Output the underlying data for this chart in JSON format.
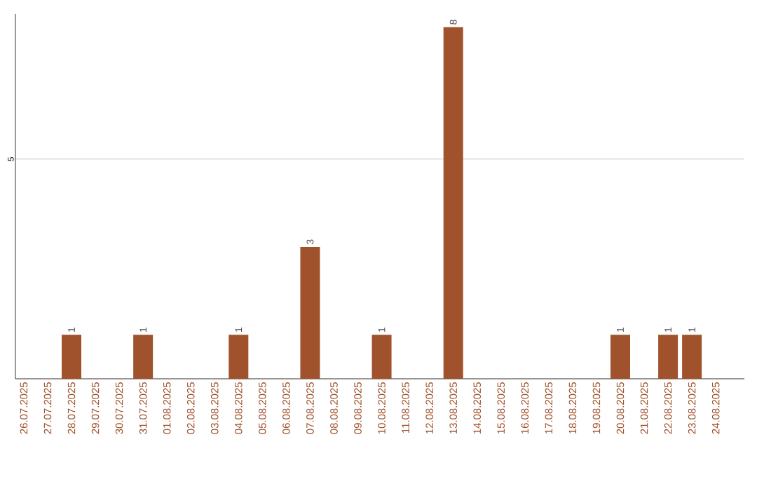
{
  "chart_data": {
    "type": "bar",
    "categories": [
      "26.07.2025",
      "27.07.2025",
      "28.07.2025",
      "29.07.2025",
      "30.07.2025",
      "31.07.2025",
      "01.08.2025",
      "02.08.2025",
      "03.08.2025",
      "04.08.2025",
      "05.08.2025",
      "06.08.2025",
      "07.08.2025",
      "08.08.2025",
      "09.08.2025",
      "10.08.2025",
      "11.08.2025",
      "12.08.2025",
      "13.08.2025",
      "14.08.2025",
      "15.08.2025",
      "16.08.2025",
      "17.08.2025",
      "18.08.2025",
      "19.08.2025",
      "20.08.2025",
      "21.08.2025",
      "22.08.2025",
      "23.08.2025",
      "24.08.2025"
    ],
    "values": [
      0,
      0,
      1,
      0,
      0,
      1,
      0,
      0,
      0,
      1,
      0,
      0,
      3,
      0,
      0,
      1,
      0,
      0,
      8,
      0,
      0,
      0,
      0,
      0,
      0,
      1,
      0,
      1,
      1,
      0
    ],
    "value_labels": [
      null,
      null,
      "1",
      null,
      null,
      "1",
      null,
      null,
      null,
      "1",
      null,
      null,
      "3",
      null,
      null,
      "1",
      null,
      null,
      "8",
      null,
      null,
      null,
      null,
      null,
      null,
      "1",
      null,
      "1",
      "1",
      null
    ],
    "color": "#a0522d",
    "ylim": [
      0,
      8.3
    ],
    "yticks": [
      5
    ],
    "grid": "y"
  }
}
